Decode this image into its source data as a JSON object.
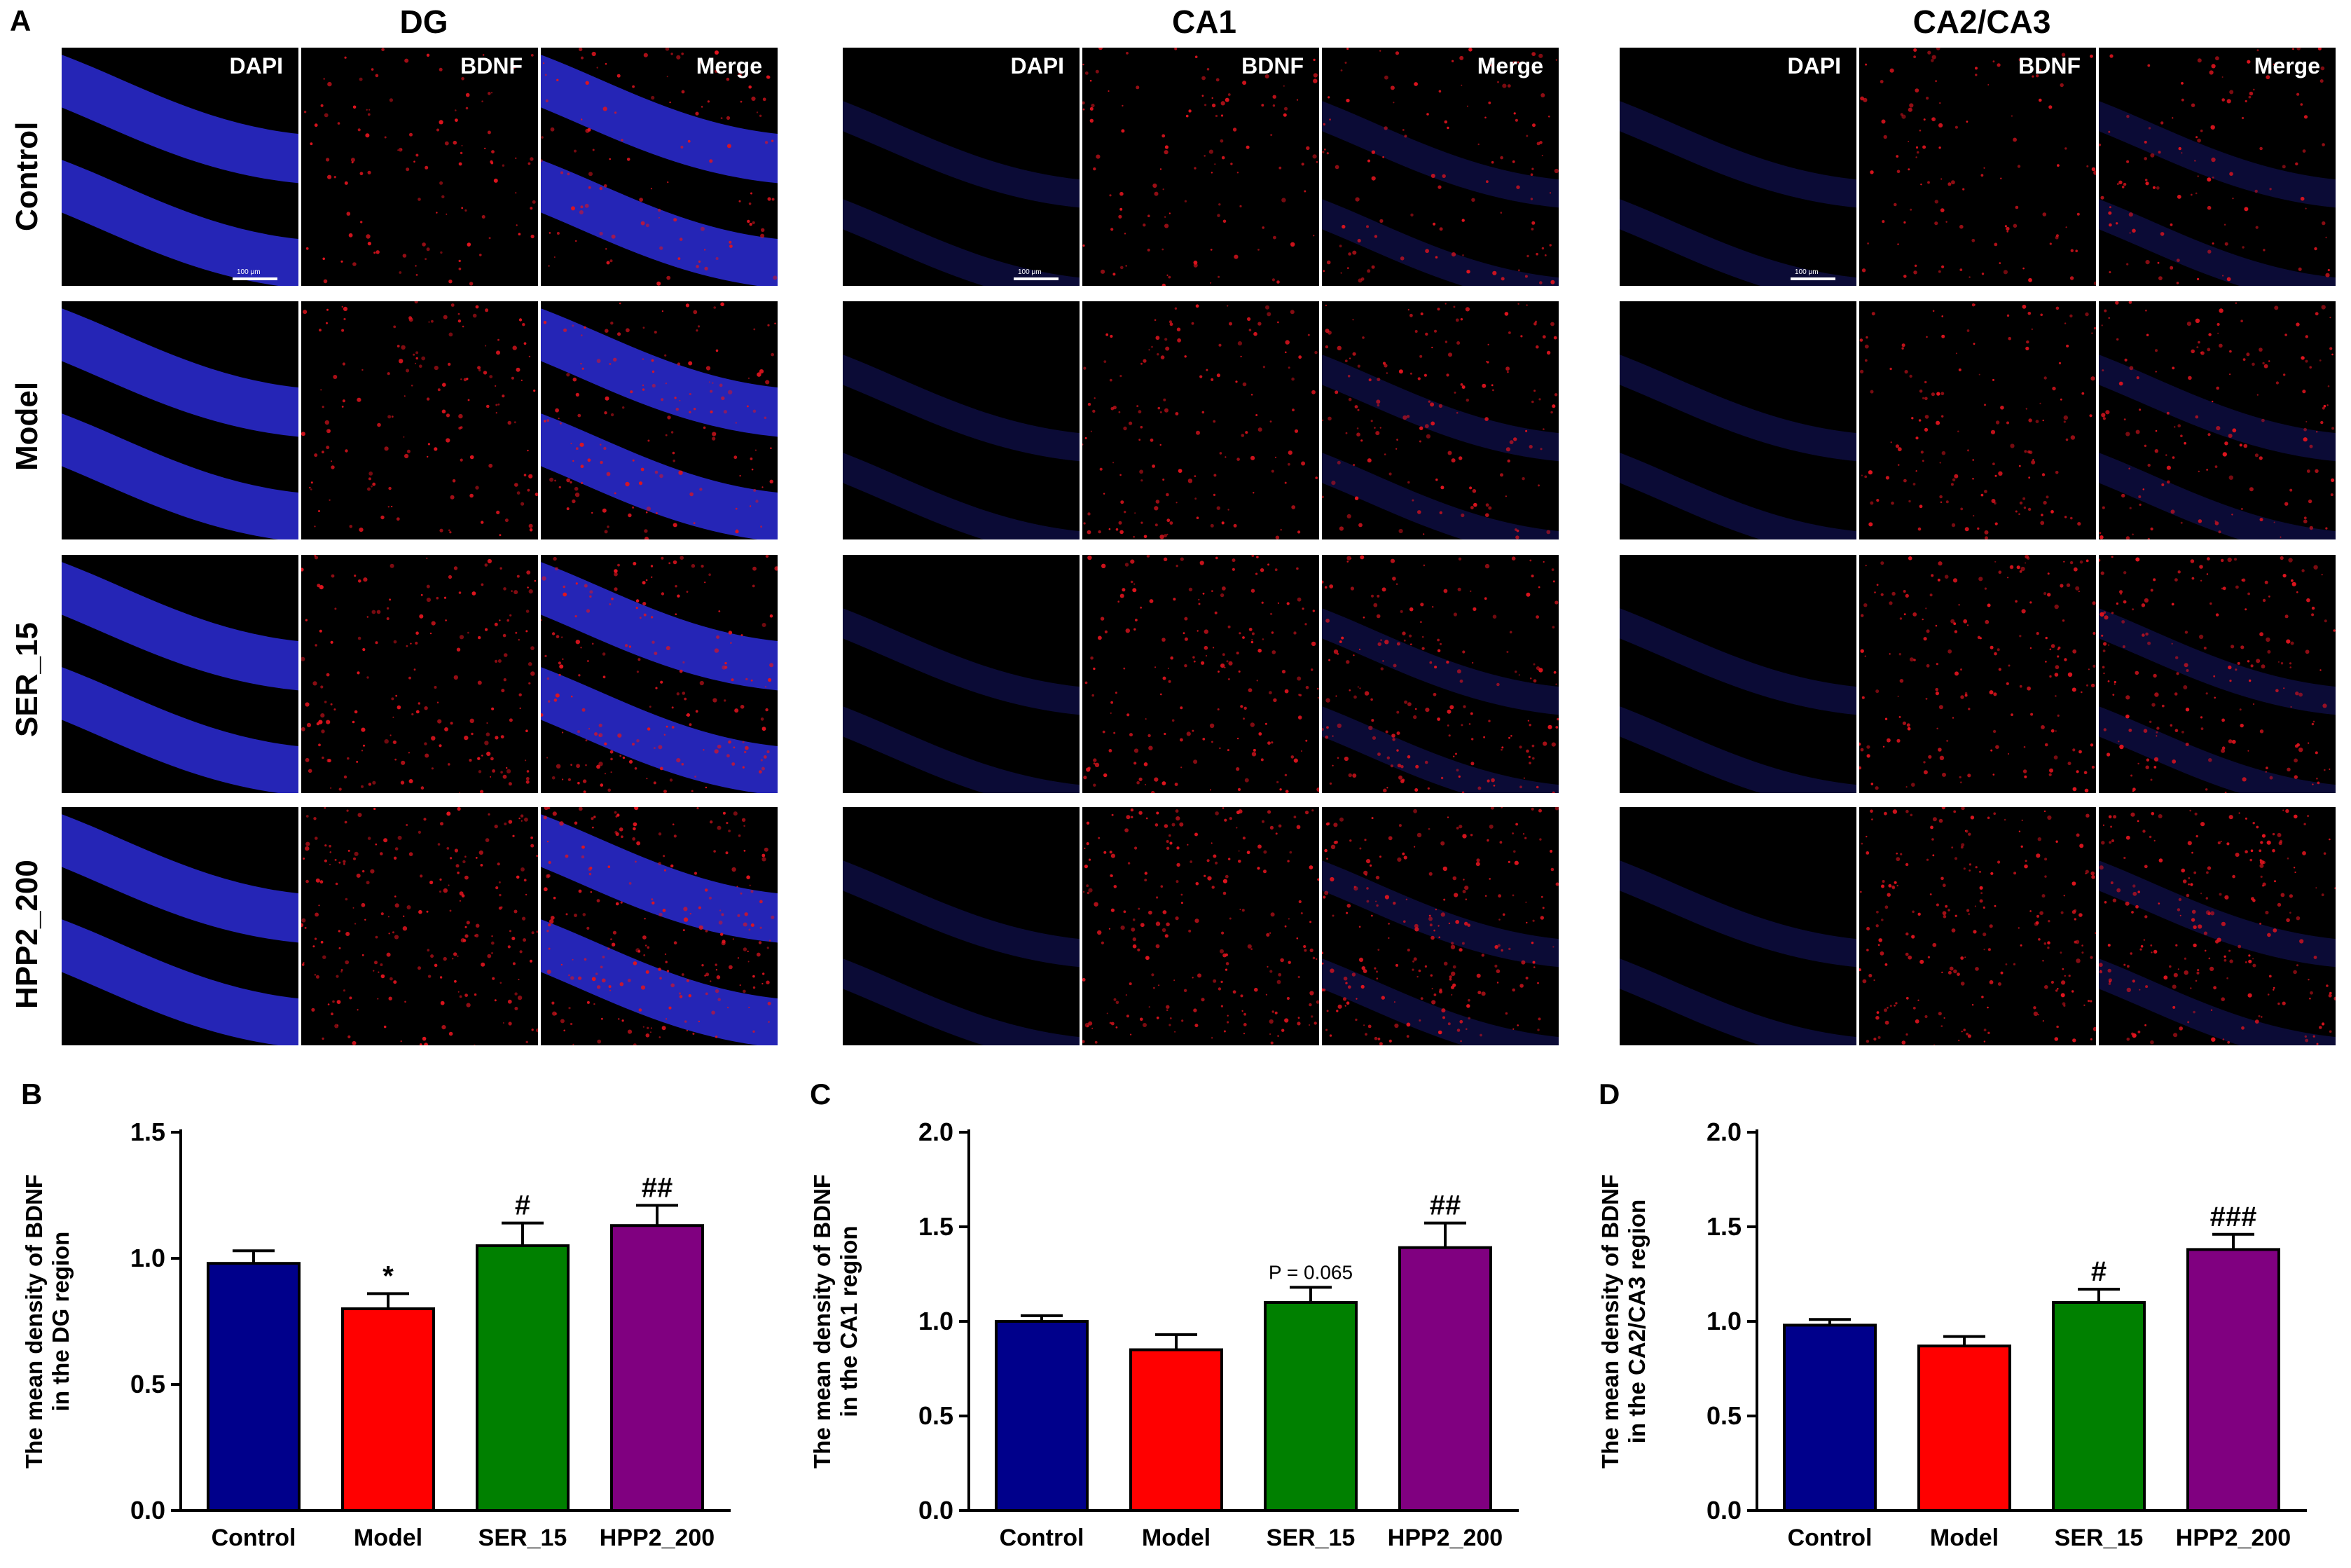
{
  "figure_a": {
    "panel_letter": "A",
    "regions": [
      {
        "title": "DG",
        "scale_text": "100 μm"
      },
      {
        "title": "CA1",
        "scale_text": "100 μm"
      },
      {
        "title": "CA2/CA3",
        "scale_text": "100 μm"
      }
    ],
    "channels": [
      "DAPI",
      "BDNF",
      "Merge"
    ],
    "groups": [
      "Control",
      "Model",
      "SER_15",
      "HPP2_200"
    ],
    "colors": {
      "dapi": "#2b2bd6",
      "bdnf": "#e0141e",
      "background": "#000000"
    }
  },
  "chart_data": [
    {
      "panel_letter": "B",
      "type": "bar",
      "categories": [
        "Control",
        "Model",
        "SER_15",
        "HPP2_200"
      ],
      "values": [
        0.98,
        0.8,
        1.05,
        1.13
      ],
      "errors": [
        0.05,
        0.06,
        0.09,
        0.08
      ],
      "annotations": [
        "",
        "*",
        "#",
        "##"
      ],
      "colors": [
        "#00008b",
        "#ff0000",
        "#008000",
        "#800080"
      ],
      "ylabel_lines": [
        "The mean density of BDNF",
        "in the DG region"
      ],
      "ylim": [
        0,
        1.5
      ],
      "yticks": [
        "0.0",
        "0.5",
        "1.0",
        "1.5"
      ],
      "ytick_values": [
        0,
        0.5,
        1.0,
        1.5
      ]
    },
    {
      "panel_letter": "C",
      "type": "bar",
      "categories": [
        "Control",
        "Model",
        "SER_15",
        "HPP2_200"
      ],
      "values": [
        1.0,
        0.85,
        1.1,
        1.39
      ],
      "errors": [
        0.03,
        0.08,
        0.08,
        0.13
      ],
      "annotations": [
        "",
        "",
        "P = 0.065",
        "##"
      ],
      "colors": [
        "#00008b",
        "#ff0000",
        "#008000",
        "#800080"
      ],
      "ylabel_lines": [
        "The mean density of BDNF",
        "in the CA1 region"
      ],
      "ylim": [
        0,
        2.0
      ],
      "yticks": [
        "0.0",
        "0.5",
        "1.0",
        "1.5",
        "2.0"
      ],
      "ytick_values": [
        0,
        0.5,
        1.0,
        1.5,
        2.0
      ]
    },
    {
      "panel_letter": "D",
      "type": "bar",
      "categories": [
        "Control",
        "Model",
        "SER_15",
        "HPP2_200"
      ],
      "values": [
        0.98,
        0.87,
        1.1,
        1.38
      ],
      "errors": [
        0.03,
        0.05,
        0.07,
        0.08
      ],
      "annotations": [
        "",
        "",
        "#",
        "###"
      ],
      "colors": [
        "#00008b",
        "#ff0000",
        "#008000",
        "#800080"
      ],
      "ylabel_lines": [
        "The mean density of BDNF",
        "in the CA2/CA3 region"
      ],
      "ylim": [
        0,
        2.0
      ],
      "yticks": [
        "0.0",
        "0.5",
        "1.0",
        "1.5",
        "2.0"
      ],
      "ytick_values": [
        0,
        0.5,
        1.0,
        1.5,
        2.0
      ]
    }
  ]
}
